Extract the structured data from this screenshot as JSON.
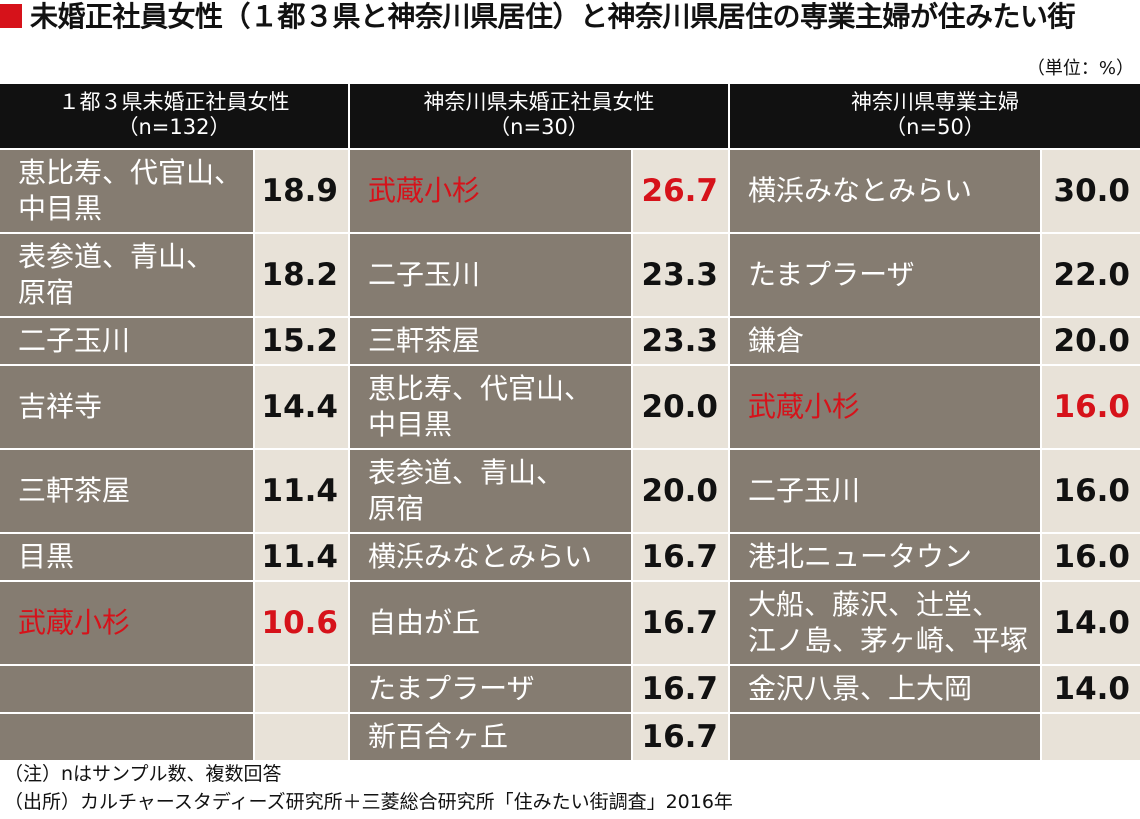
{
  "title": "未婚正社員女性（１都３県と神奈川県居住）と神奈川県居住の専業主婦が住みたい街",
  "unit": "（単位：%）",
  "footnotes": [
    "（注）nはサンプル数、複数回答",
    "（出所）カルチャースタディーズ研究所＋三菱総合研究所「住みたい街調査」2016年"
  ],
  "colors": {
    "highlight": "#d6121a",
    "name_bg": "#857c71",
    "value_bg": "#e8e2d8",
    "header_bg": "#111111"
  },
  "chart_data": {
    "type": "table",
    "columns": [
      {
        "header_line1": "１都３県未婚正社員女性",
        "header_line2": "（n=132）",
        "rows": [
          {
            "name": "恵比寿、代官山、\n中目黒",
            "value": "18.9",
            "highlight": false
          },
          {
            "name": "表参道、青山、\n原宿",
            "value": "18.2",
            "highlight": false
          },
          {
            "name": "二子玉川",
            "value": "15.2",
            "highlight": false
          },
          {
            "name": "吉祥寺",
            "value": "14.4",
            "highlight": false
          },
          {
            "name": "三軒茶屋",
            "value": "11.4",
            "highlight": false
          },
          {
            "name": "目黒",
            "value": "11.4",
            "highlight": false
          },
          {
            "name": "武蔵小杉",
            "value": "10.6",
            "highlight": true
          },
          {
            "name": "",
            "value": "",
            "highlight": false
          },
          {
            "name": "",
            "value": "",
            "highlight": false
          }
        ]
      },
      {
        "header_line1": "神奈川県未婚正社員女性",
        "header_line2": "（n=30）",
        "rows": [
          {
            "name": "武蔵小杉",
            "value": "26.7",
            "highlight": true
          },
          {
            "name": "二子玉川",
            "value": "23.3",
            "highlight": false
          },
          {
            "name": "三軒茶屋",
            "value": "23.3",
            "highlight": false
          },
          {
            "name": "恵比寿、代官山、\n中目黒",
            "value": "20.0",
            "highlight": false
          },
          {
            "name": "表参道、青山、\n原宿",
            "value": "20.0",
            "highlight": false
          },
          {
            "name": "横浜みなとみらい",
            "value": "16.7",
            "highlight": false
          },
          {
            "name": "自由が丘",
            "value": "16.7",
            "highlight": false
          },
          {
            "name": "たまプラーザ",
            "value": "16.7",
            "highlight": false
          },
          {
            "name": "新百合ヶ丘",
            "value": "16.7",
            "highlight": false
          }
        ]
      },
      {
        "header_line1": "神奈川県専業主婦",
        "header_line2": "（n=50）",
        "rows": [
          {
            "name": "横浜みなとみらい",
            "value": "30.0",
            "highlight": false
          },
          {
            "name": "たまプラーザ",
            "value": "22.0",
            "highlight": false
          },
          {
            "name": "鎌倉",
            "value": "20.0",
            "highlight": false
          },
          {
            "name": "武蔵小杉",
            "value": "16.0",
            "highlight": true
          },
          {
            "name": "二子玉川",
            "value": "16.0",
            "highlight": false
          },
          {
            "name": "港北ニュータウン",
            "value": "16.0",
            "highlight": false
          },
          {
            "name": "大船、藤沢、辻堂、\n江ノ島、茅ヶ崎、平塚",
            "value": "14.0",
            "highlight": false
          },
          {
            "name": "金沢八景、上大岡",
            "value": "14.0",
            "highlight": false
          },
          {
            "name": "",
            "value": "",
            "highlight": false
          }
        ]
      }
    ]
  }
}
